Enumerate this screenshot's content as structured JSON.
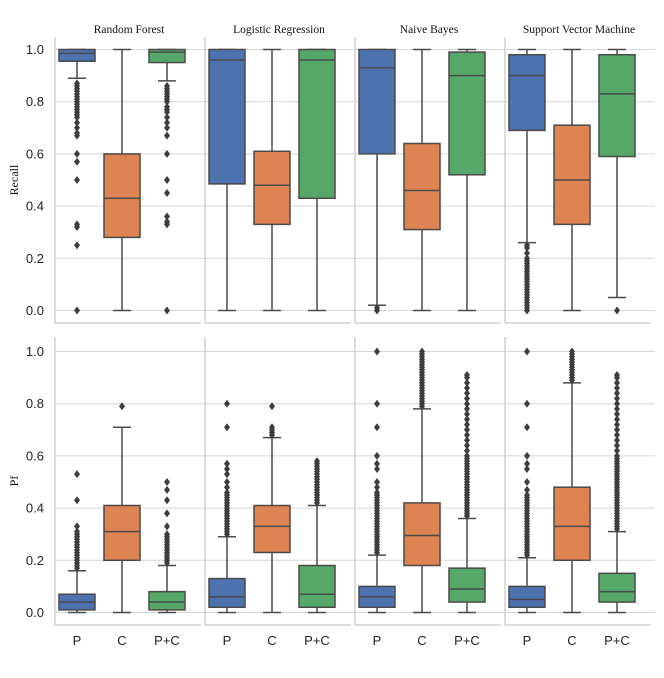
{
  "chart_data": {
    "type": "box",
    "layout": "2x4 facet grid",
    "categories": [
      "P",
      "C",
      "P+C"
    ],
    "colors": {
      "P": "#4c72b0",
      "C": "#dd8452",
      "P+C": "#55a868"
    },
    "col_titles": [
      "Random Forest",
      "Logistic Regression",
      "Naive Bayes",
      "Support Vector Machine"
    ],
    "row_labels": [
      "Recall",
      "Pf"
    ],
    "y_ticks": [
      "0.0",
      "0.2",
      "0.4",
      "0.6",
      "0.8",
      "1.0"
    ],
    "ylim": [
      -0.05,
      1.05
    ],
    "grid": true,
    "panels": [
      {
        "row": 0,
        "col": 0,
        "boxes": [
          {
            "cat": "P",
            "q1": 0.955,
            "median": 0.985,
            "q3": 1.0,
            "whislo": 0.89,
            "whishi": 1.0,
            "fliers": [
              0.87,
              0.86,
              0.85,
              0.84,
              0.83,
              0.82,
              0.81,
              0.8,
              0.79,
              0.78,
              0.77,
              0.76,
              0.75,
              0.74,
              0.72,
              0.7,
              0.68,
              0.67,
              0.6,
              0.57,
              0.5,
              0.33,
              0.32,
              0.25,
              0.0
            ]
          },
          {
            "cat": "C",
            "q1": 0.28,
            "median": 0.43,
            "q3": 0.6,
            "whislo": 0.0,
            "whishi": 1.0,
            "fliers": []
          },
          {
            "cat": "P+C",
            "q1": 0.95,
            "median": 0.99,
            "q3": 1.0,
            "whislo": 0.88,
            "whishi": 1.0,
            "fliers": [
              0.86,
              0.85,
              0.84,
              0.83,
              0.82,
              0.81,
              0.8,
              0.78,
              0.77,
              0.76,
              0.74,
              0.72,
              0.7,
              0.67,
              0.6,
              0.5,
              0.45,
              0.36,
              0.34,
              0.33,
              0.0
            ]
          }
        ]
      },
      {
        "row": 0,
        "col": 1,
        "boxes": [
          {
            "cat": "P",
            "q1": 0.485,
            "median": 0.96,
            "q3": 1.0,
            "whislo": 0.0,
            "whishi": 1.0,
            "fliers": []
          },
          {
            "cat": "C",
            "q1": 0.33,
            "median": 0.48,
            "q3": 0.61,
            "whislo": 0.0,
            "whishi": 1.0,
            "fliers": []
          },
          {
            "cat": "P+C",
            "q1": 0.43,
            "median": 0.96,
            "q3": 1.0,
            "whislo": 0.0,
            "whishi": 1.0,
            "fliers": []
          }
        ]
      },
      {
        "row": 0,
        "col": 2,
        "boxes": [
          {
            "cat": "P",
            "q1": 0.6,
            "median": 0.93,
            "q3": 1.0,
            "whislo": 0.02,
            "whishi": 1.0,
            "fliers": [
              0.01,
              0.0
            ]
          },
          {
            "cat": "C",
            "q1": 0.31,
            "median": 0.46,
            "q3": 0.64,
            "whislo": 0.0,
            "whishi": 1.0,
            "fliers": []
          },
          {
            "cat": "P+C",
            "q1": 0.52,
            "median": 0.9,
            "q3": 0.99,
            "whislo": 0.0,
            "whishi": 1.0,
            "fliers": []
          }
        ]
      },
      {
        "row": 0,
        "col": 3,
        "boxes": [
          {
            "cat": "P",
            "q1": 0.69,
            "median": 0.9,
            "q3": 0.98,
            "whislo": 0.26,
            "whishi": 1.0,
            "fliers": [
              0.25,
              0.24,
              0.22,
              0.2,
              0.19,
              0.18,
              0.17,
              0.16,
              0.15,
              0.14,
              0.13,
              0.12,
              0.11,
              0.1,
              0.09,
              0.08,
              0.07,
              0.06,
              0.05,
              0.04,
              0.03,
              0.02,
              0.01,
              0.0
            ]
          },
          {
            "cat": "C",
            "q1": 0.33,
            "median": 0.5,
            "q3": 0.71,
            "whislo": 0.0,
            "whishi": 1.0,
            "fliers": []
          },
          {
            "cat": "P+C",
            "q1": 0.59,
            "median": 0.83,
            "q3": 0.98,
            "whislo": 0.05,
            "whishi": 1.0,
            "fliers": [
              0.0
            ]
          }
        ]
      },
      {
        "row": 1,
        "col": 0,
        "boxes": [
          {
            "cat": "P",
            "q1": 0.01,
            "median": 0.04,
            "q3": 0.07,
            "whislo": 0.0,
            "whishi": 0.16,
            "fliers": [
              0.17,
              0.18,
              0.19,
              0.2,
              0.21,
              0.22,
              0.23,
              0.24,
              0.25,
              0.26,
              0.27,
              0.28,
              0.29,
              0.3,
              0.31,
              0.33,
              0.43,
              0.53
            ]
          },
          {
            "cat": "C",
            "q1": 0.2,
            "median": 0.31,
            "q3": 0.41,
            "whislo": 0.0,
            "whishi": 0.71,
            "fliers": [
              0.79
            ]
          },
          {
            "cat": "P+C",
            "q1": 0.01,
            "median": 0.04,
            "q3": 0.08,
            "whislo": 0.0,
            "whishi": 0.18,
            "fliers": [
              0.19,
              0.2,
              0.21,
              0.22,
              0.23,
              0.24,
              0.25,
              0.26,
              0.27,
              0.28,
              0.29,
              0.3,
              0.33,
              0.38,
              0.43,
              0.47,
              0.5
            ]
          }
        ]
      },
      {
        "row": 1,
        "col": 1,
        "boxes": [
          {
            "cat": "P",
            "q1": 0.02,
            "median": 0.06,
            "q3": 0.13,
            "whislo": 0.0,
            "whishi": 0.29,
            "fliers": [
              0.3,
              0.31,
              0.32,
              0.33,
              0.34,
              0.35,
              0.36,
              0.37,
              0.38,
              0.39,
              0.4,
              0.41,
              0.42,
              0.43,
              0.44,
              0.45,
              0.46,
              0.48,
              0.5,
              0.53,
              0.55,
              0.57,
              0.71,
              0.8
            ]
          },
          {
            "cat": "C",
            "q1": 0.23,
            "median": 0.33,
            "q3": 0.41,
            "whislo": 0.0,
            "whishi": 0.67,
            "fliers": [
              0.68,
              0.69,
              0.7,
              0.71,
              0.79
            ]
          },
          {
            "cat": "P+C",
            "q1": 0.02,
            "median": 0.07,
            "q3": 0.18,
            "whislo": 0.0,
            "whishi": 0.41,
            "fliers": [
              0.42,
              0.43,
              0.44,
              0.45,
              0.46,
              0.47,
              0.48,
              0.49,
              0.5,
              0.51,
              0.52,
              0.53,
              0.54,
              0.55,
              0.56,
              0.57,
              0.58
            ]
          }
        ]
      },
      {
        "row": 1,
        "col": 2,
        "boxes": [
          {
            "cat": "P",
            "q1": 0.02,
            "median": 0.06,
            "q3": 0.1,
            "whislo": 0.0,
            "whishi": 0.22,
            "fliers": [
              0.23,
              0.24,
              0.25,
              0.26,
              0.27,
              0.28,
              0.29,
              0.3,
              0.31,
              0.32,
              0.33,
              0.34,
              0.35,
              0.36,
              0.37,
              0.38,
              0.39,
              0.4,
              0.41,
              0.42,
              0.43,
              0.44,
              0.45,
              0.46,
              0.48,
              0.5,
              0.55,
              0.57,
              0.6,
              0.71,
              0.8,
              1.0
            ]
          },
          {
            "cat": "C",
            "q1": 0.18,
            "median": 0.295,
            "q3": 0.42,
            "whislo": 0.0,
            "whishi": 0.78,
            "fliers": [
              0.79,
              0.8,
              0.81,
              0.82,
              0.83,
              0.84,
              0.85,
              0.86,
              0.87,
              0.88,
              0.89,
              0.9,
              0.91,
              0.92,
              0.93,
              0.94,
              0.95,
              0.96,
              0.97,
              0.98,
              0.99,
              1.0
            ]
          },
          {
            "cat": "P+C",
            "q1": 0.04,
            "median": 0.09,
            "q3": 0.17,
            "whislo": 0.0,
            "whishi": 0.36,
            "fliers": [
              0.37,
              0.38,
              0.39,
              0.4,
              0.41,
              0.42,
              0.43,
              0.44,
              0.45,
              0.46,
              0.47,
              0.48,
              0.49,
              0.5,
              0.51,
              0.52,
              0.53,
              0.54,
              0.55,
              0.56,
              0.57,
              0.58,
              0.59,
              0.6,
              0.62,
              0.64,
              0.66,
              0.68,
              0.7,
              0.72,
              0.74,
              0.76,
              0.78,
              0.8,
              0.82,
              0.84,
              0.86,
              0.88,
              0.9,
              0.91
            ]
          }
        ]
      },
      {
        "row": 1,
        "col": 3,
        "boxes": [
          {
            "cat": "P",
            "q1": 0.02,
            "median": 0.05,
            "q3": 0.1,
            "whislo": 0.0,
            "whishi": 0.21,
            "fliers": [
              0.22,
              0.23,
              0.24,
              0.25,
              0.26,
              0.27,
              0.28,
              0.29,
              0.3,
              0.31,
              0.32,
              0.33,
              0.34,
              0.35,
              0.36,
              0.37,
              0.38,
              0.39,
              0.4,
              0.41,
              0.42,
              0.43,
              0.44,
              0.45,
              0.47,
              0.5,
              0.55,
              0.57,
              0.6,
              0.71,
              0.8,
              1.0
            ]
          },
          {
            "cat": "C",
            "q1": 0.2,
            "median": 0.33,
            "q3": 0.48,
            "whislo": 0.0,
            "whishi": 0.88,
            "fliers": [
              0.89,
              0.9,
              0.91,
              0.92,
              0.93,
              0.94,
              0.95,
              0.96,
              0.97,
              0.98,
              0.99,
              1.0
            ]
          },
          {
            "cat": "P+C",
            "q1": 0.04,
            "median": 0.08,
            "q3": 0.15,
            "whislo": 0.0,
            "whishi": 0.31,
            "fliers": [
              0.32,
              0.33,
              0.34,
              0.35,
              0.36,
              0.37,
              0.38,
              0.39,
              0.4,
              0.41,
              0.42,
              0.43,
              0.44,
              0.45,
              0.46,
              0.47,
              0.48,
              0.49,
              0.5,
              0.51,
              0.52,
              0.53,
              0.54,
              0.55,
              0.56,
              0.57,
              0.58,
              0.59,
              0.6,
              0.62,
              0.64,
              0.66,
              0.68,
              0.7,
              0.72,
              0.74,
              0.76,
              0.78,
              0.8,
              0.82,
              0.84,
              0.86,
              0.88,
              0.9,
              0.91
            ]
          }
        ]
      }
    ]
  }
}
